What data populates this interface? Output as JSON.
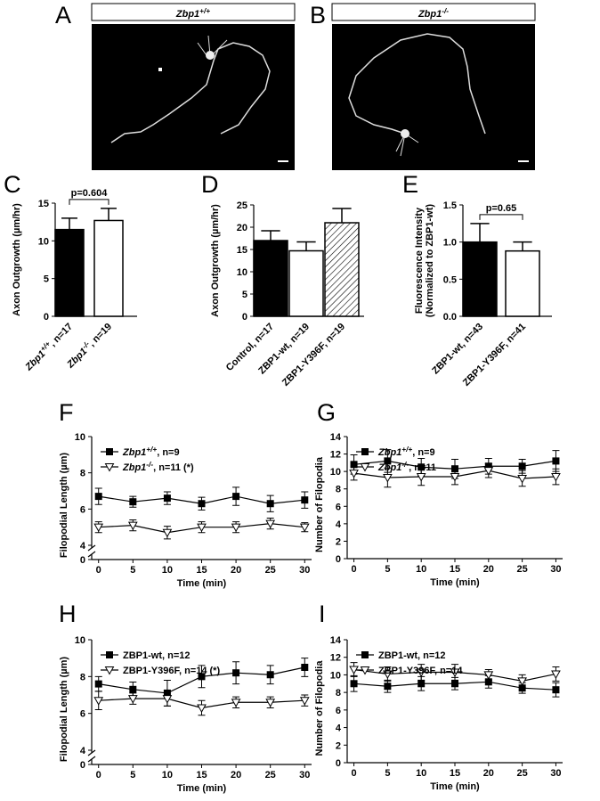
{
  "panel_letters": [
    "A",
    "B",
    "C",
    "D",
    "E",
    "F",
    "G",
    "H",
    "I"
  ],
  "images": [
    {
      "label": "Zbp1+/+"
    },
    {
      "label": "Zbp1-/-"
    }
  ],
  "chart_data": [
    {
      "type": "bar",
      "ylabel": "Axon Outgrowth (µm/hr)",
      "categories": [
        "Zbp1+/+, n=17",
        "Zbp1-/-, n=19"
      ],
      "values": [
        11.5,
        12.7
      ],
      "errors": [
        1.5,
        1.6
      ],
      "colors": [
        "#000000",
        "#ffffff"
      ],
      "hatched": [
        false,
        false
      ],
      "ylim": [
        0,
        15
      ],
      "yticks": [
        0,
        5,
        10,
        15
      ],
      "annotation": "p=0.604"
    },
    {
      "type": "bar",
      "ylabel": "Axon Outgrowth (µm/hr)",
      "categories": [
        "Control, n=17",
        "ZBP1-wt, n=19",
        "ZBP1-Y396F, n=19"
      ],
      "values": [
        17,
        14.7,
        21
      ],
      "errors": [
        2.2,
        2.0,
        3.2
      ],
      "colors": [
        "#000000",
        "#ffffff",
        "#ffffff"
      ],
      "hatched": [
        false,
        false,
        true
      ],
      "ylim": [
        0,
        25
      ],
      "yticks": [
        0,
        5,
        10,
        15,
        20,
        25
      ]
    },
    {
      "type": "bar",
      "ylabel": [
        "Fluorescence Intensity",
        "(Normalized to ZBP1-wt)"
      ],
      "categories": [
        "ZBP1-wt, n=43",
        "ZBP1-Y396F, n=41"
      ],
      "values": [
        1.0,
        0.88
      ],
      "errors": [
        0.25,
        0.12
      ],
      "colors": [
        "#000000",
        "#ffffff"
      ],
      "hatched": [
        false,
        false
      ],
      "ylim": [
        0,
        1.5
      ],
      "yticks": [
        {
          "value": 0,
          "label": "0.0"
        },
        {
          "value": 0.5,
          "label": "0.5"
        },
        {
          "value": 1,
          "label": "1.0"
        },
        {
          "value": 1.5,
          "label": "1.5"
        }
      ],
      "annotation": "p=0.65"
    },
    {
      "type": "line",
      "xlabel": "Time (min)",
      "ylabel": "Filopodial Length (µm)",
      "x": [
        0,
        5,
        10,
        15,
        20,
        25,
        30
      ],
      "xlim": [
        -1,
        31
      ],
      "xticks": [
        0,
        5,
        10,
        15,
        20,
        25,
        30
      ],
      "ylim": [
        0,
        10
      ],
      "ybreak": [
        0,
        4
      ],
      "yticks": [
        0,
        4,
        6,
        8,
        10
      ],
      "series": [
        {
          "name": "Zbp1+/+, n=9",
          "color": "#000000",
          "marker": "square",
          "marker_fill": "#000000",
          "values": [
            6.7,
            6.4,
            6.6,
            6.3,
            6.7,
            6.3,
            6.5
          ],
          "errors": [
            0.45,
            0.3,
            0.35,
            0.35,
            0.5,
            0.45,
            0.45
          ]
        },
        {
          "name": "Zbp1-/-, n=11 (*)",
          "color": "#000000",
          "marker": "triangle-down",
          "marker_fill": "#ffffff",
          "values": [
            5.0,
            5.1,
            4.7,
            5.0,
            5.0,
            5.2,
            5.0
          ],
          "errors": [
            0.3,
            0.3,
            0.35,
            0.3,
            0.3,
            0.3,
            0.25
          ]
        }
      ]
    },
    {
      "type": "line",
      "xlabel": "Time (min)",
      "ylabel": "Number of Filopodia",
      "x": [
        0,
        5,
        10,
        15,
        20,
        25,
        30
      ],
      "xlim": [
        -1,
        31
      ],
      "xticks": [
        0,
        5,
        10,
        15,
        20,
        25,
        30
      ],
      "ylim": [
        0,
        14
      ],
      "yticks": [
        0,
        2,
        4,
        6,
        8,
        10,
        12,
        14
      ],
      "series": [
        {
          "name": "Zbp1+/+, n=9",
          "color": "#000000",
          "marker": "square",
          "marker_fill": "#000000",
          "values": [
            10.8,
            11.2,
            10.5,
            10.3,
            10.6,
            10.6,
            11.2
          ],
          "errors": [
            1.1,
            1.3,
            1.0,
            1.1,
            0.9,
            0.8,
            1.2
          ]
        },
        {
          "name": "Zbp1-/-, n=11",
          "color": "#000000",
          "marker": "triangle-down",
          "marker_fill": "#ffffff",
          "values": [
            9.8,
            9.3,
            9.4,
            9.4,
            10.1,
            9.2,
            9.4
          ],
          "errors": [
            0.8,
            1.1,
            1.0,
            0.9,
            0.8,
            0.9,
            0.9
          ]
        }
      ]
    },
    {
      "type": "line",
      "xlabel": "Time (min)",
      "ylabel": "Filopodial Length (µm)",
      "x": [
        0,
        5,
        10,
        15,
        20,
        25,
        30
      ],
      "xlim": [
        -1,
        31
      ],
      "xticks": [
        0,
        5,
        10,
        15,
        20,
        25,
        30
      ],
      "ylim": [
        0,
        10
      ],
      "ybreak": [
        0,
        4
      ],
      "yticks": [
        0,
        4,
        6,
        8,
        10
      ],
      "series": [
        {
          "name": "ZBP1-wt, n=12",
          "color": "#000000",
          "marker": "square",
          "marker_fill": "#000000",
          "values": [
            7.6,
            7.3,
            7.1,
            8.0,
            8.2,
            8.1,
            8.5
          ],
          "errors": [
            0.4,
            0.4,
            0.7,
            0.6,
            0.6,
            0.5,
            0.5
          ]
        },
        {
          "name": "ZBP1-Y396F, n=14 (*)",
          "color": "#000000",
          "marker": "triangle-down",
          "marker_fill": "#ffffff",
          "values": [
            6.7,
            6.8,
            6.8,
            6.3,
            6.6,
            6.6,
            6.7
          ],
          "errors": [
            0.5,
            0.3,
            0.4,
            0.4,
            0.3,
            0.3,
            0.3
          ]
        }
      ]
    },
    {
      "type": "line",
      "xlabel": "Time (min)",
      "ylabel": "Number of Filopodia",
      "x": [
        0,
        5,
        10,
        15,
        20,
        25,
        30
      ],
      "xlim": [
        -1,
        31
      ],
      "xticks": [
        0,
        5,
        10,
        15,
        20,
        25,
        30
      ],
      "ylim": [
        0,
        14
      ],
      "yticks": [
        0,
        2,
        4,
        6,
        8,
        10,
        12,
        14
      ],
      "series": [
        {
          "name": "ZBP1-wt, n=12",
          "color": "#000000",
          "marker": "square",
          "marker_fill": "#000000",
          "values": [
            9.0,
            8.7,
            9.0,
            9.0,
            9.2,
            8.5,
            8.3
          ],
          "errors": [
            0.9,
            0.7,
            0.8,
            0.7,
            0.7,
            0.6,
            0.8
          ]
        },
        {
          "name": "ZBP1-Y396F, n=14",
          "color": "#000000",
          "marker": "triangle-down",
          "marker_fill": "#ffffff",
          "values": [
            10.6,
            10.1,
            10.3,
            10.3,
            10.0,
            9.3,
            10.1
          ],
          "errors": [
            0.8,
            0.8,
            0.9,
            0.9,
            0.6,
            0.7,
            0.8
          ]
        }
      ]
    }
  ]
}
